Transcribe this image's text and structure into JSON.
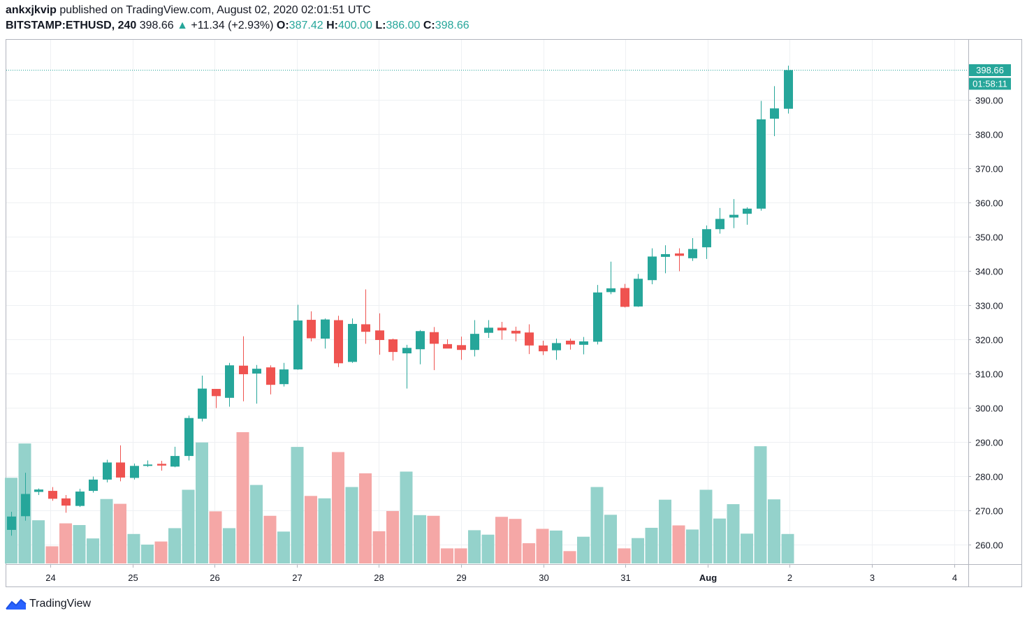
{
  "header": {
    "author": "ankxjkvip",
    "published_text": "published on TradingView.com, August 02, 2020 02:01:51 UTC",
    "symbol": "BITSTAMP:ETHUSD, 240",
    "last": "398.66",
    "change_arrow": "▲",
    "change": "+11.34 (+2.93%)",
    "o_label": "O:",
    "o": "387.42",
    "h_label": "H:",
    "h": "400.00",
    "l_label": "L:",
    "l": "386.00",
    "c_label": "C:",
    "c": "398.66"
  },
  "price_tag": {
    "price": "398.66",
    "countdown": "01:58:11"
  },
  "brand": {
    "name": "TradingView",
    "icon": "tradingview-logo-icon"
  },
  "colors": {
    "up": "#26a69a",
    "down": "#ef5350",
    "vol_up": "#94d2cb",
    "vol_down": "#f5a7a6",
    "grid": "#eef0f3"
  },
  "chart_data": {
    "type": "candlestick",
    "y_ticks": [
      260,
      270,
      280,
      290,
      300,
      310,
      320,
      330,
      340,
      350,
      360,
      370,
      380,
      390
    ],
    "ylim": [
      254.5,
      408.2
    ],
    "x_labels": [
      "24",
      "25",
      "26",
      "27",
      "28",
      "29",
      "30",
      "31",
      "Aug",
      "2",
      "3",
      "4"
    ],
    "candles": [
      {
        "o": 264.3,
        "h": 269.6,
        "l": 262.6,
        "c": 268.2,
        "v": 25
      },
      {
        "o": 268.3,
        "h": 281.0,
        "l": 267.0,
        "c": 274.8,
        "v": 35
      },
      {
        "o": 275.4,
        "h": 276.4,
        "l": 274.5,
        "c": 276.1,
        "v": 12.6
      },
      {
        "o": 275.7,
        "h": 276.8,
        "l": 272.8,
        "c": 273.4,
        "v": 5
      },
      {
        "o": 273.5,
        "h": 274.5,
        "l": 269.3,
        "c": 271.4,
        "v": 11.7
      },
      {
        "o": 271.3,
        "h": 276.3,
        "l": 271.0,
        "c": 275.5,
        "v": 11.2
      },
      {
        "o": 275.7,
        "h": 279.9,
        "l": 275.2,
        "c": 279.0,
        "v": 7.3
      },
      {
        "o": 279.0,
        "h": 284.8,
        "l": 278.2,
        "c": 284.0,
        "v": 18.8
      },
      {
        "o": 284.0,
        "h": 289.0,
        "l": 278.5,
        "c": 279.6,
        "v": 17.4
      },
      {
        "o": 279.5,
        "h": 283.7,
        "l": 279.0,
        "c": 283.0,
        "v": 8.6
      },
      {
        "o": 283.0,
        "h": 284.6,
        "l": 282.7,
        "c": 283.4,
        "v": 5.5
      },
      {
        "o": 283.6,
        "h": 284.5,
        "l": 281.6,
        "c": 283.1,
        "v": 6.4
      },
      {
        "o": 282.8,
        "h": 288.6,
        "l": 282.6,
        "c": 285.9,
        "v": 10.3
      },
      {
        "o": 285.9,
        "h": 297.7,
        "l": 284.6,
        "c": 297.0,
        "v": 21.5
      },
      {
        "o": 296.8,
        "h": 309.4,
        "l": 296.0,
        "c": 305.6,
        "v": 35.3
      },
      {
        "o": 305.5,
        "h": 305.5,
        "l": 299.9,
        "c": 303.4,
        "v": 15.2
      },
      {
        "o": 302.9,
        "h": 313.1,
        "l": 300.3,
        "c": 312.4,
        "v": 10.3
      },
      {
        "o": 312.3,
        "h": 320.9,
        "l": 301.9,
        "c": 309.8,
        "v": 38.3
      },
      {
        "o": 310.0,
        "h": 312.5,
        "l": 301.2,
        "c": 311.4,
        "v": 22.9
      },
      {
        "o": 311.8,
        "h": 312.4,
        "l": 303.9,
        "c": 306.7,
        "v": 13.9
      },
      {
        "o": 306.9,
        "h": 313.1,
        "l": 306.2,
        "c": 311.2,
        "v": 9.3
      },
      {
        "o": 311.2,
        "h": 330.1,
        "l": 311.1,
        "c": 325.5,
        "v": 34
      },
      {
        "o": 325.7,
        "h": 328.2,
        "l": 319.4,
        "c": 320.3,
        "v": 19.7
      },
      {
        "o": 320.2,
        "h": 326.1,
        "l": 317.3,
        "c": 325.8,
        "v": 19
      },
      {
        "o": 325.6,
        "h": 326.9,
        "l": 311.9,
        "c": 313.0,
        "v": 32.5
      },
      {
        "o": 313.4,
        "h": 326.1,
        "l": 313.1,
        "c": 324.5,
        "v": 22.3
      },
      {
        "o": 324.4,
        "h": 334.6,
        "l": 318.7,
        "c": 322.2,
        "v": 26.3
      },
      {
        "o": 322.6,
        "h": 327.6,
        "l": 315.5,
        "c": 319.8,
        "v": 9.4
      },
      {
        "o": 320.0,
        "h": 320.2,
        "l": 313.8,
        "c": 316.3,
        "v": 15.3
      },
      {
        "o": 315.9,
        "h": 318.4,
        "l": 305.6,
        "c": 317.5,
        "v": 26.8
      },
      {
        "o": 317.1,
        "h": 322.7,
        "l": 312.7,
        "c": 322.4,
        "v": 14.1
      },
      {
        "o": 322.1,
        "h": 323.6,
        "l": 311.0,
        "c": 318.7,
        "v": 13.9
      },
      {
        "o": 318.6,
        "h": 320.0,
        "l": 317.6,
        "c": 317.3,
        "v": 4.4
      },
      {
        "o": 318.3,
        "h": 320.8,
        "l": 314.0,
        "c": 316.9,
        "v": 4.4
      },
      {
        "o": 316.9,
        "h": 325.6,
        "l": 315.0,
        "c": 321.6,
        "v": 9.7
      },
      {
        "o": 321.9,
        "h": 325.6,
        "l": 320.4,
        "c": 323.4,
        "v": 8.4
      },
      {
        "o": 323.4,
        "h": 325.1,
        "l": 319.9,
        "c": 322.6,
        "v": 13.6
      },
      {
        "o": 322.5,
        "h": 323.7,
        "l": 319.4,
        "c": 321.7,
        "v": 13
      },
      {
        "o": 322.0,
        "h": 324.4,
        "l": 315.7,
        "c": 318.2,
        "v": 5.9
      },
      {
        "o": 318.2,
        "h": 319.6,
        "l": 315.4,
        "c": 316.5,
        "v": 10.1
      },
      {
        "o": 316.8,
        "h": 320.2,
        "l": 314.0,
        "c": 318.9,
        "v": 9.6
      },
      {
        "o": 319.6,
        "h": 320.2,
        "l": 317.0,
        "c": 318.5,
        "v": 3.6
      },
      {
        "o": 318.4,
        "h": 320.7,
        "l": 315.6,
        "c": 319.4,
        "v": 7.8
      },
      {
        "o": 319.3,
        "h": 335.9,
        "l": 318.5,
        "c": 333.7,
        "v": 22.3
      },
      {
        "o": 333.8,
        "h": 342.7,
        "l": 333.2,
        "c": 334.9,
        "v": 14.2
      },
      {
        "o": 335.0,
        "h": 336.2,
        "l": 329.3,
        "c": 329.5,
        "v": 4.4
      },
      {
        "o": 329.6,
        "h": 339.1,
        "l": 329.5,
        "c": 337.7,
        "v": 7.4
      },
      {
        "o": 337.3,
        "h": 346.6,
        "l": 336.1,
        "c": 344.2,
        "v": 10.4
      },
      {
        "o": 344.1,
        "h": 347.5,
        "l": 339.3,
        "c": 344.9,
        "v": 18.6
      },
      {
        "o": 345.1,
        "h": 346.6,
        "l": 339.9,
        "c": 344.4,
        "v": 11.1
      },
      {
        "o": 343.7,
        "h": 349.6,
        "l": 342.9,
        "c": 346.4,
        "v": 9.9
      },
      {
        "o": 346.9,
        "h": 353.3,
        "l": 343.5,
        "c": 352.2,
        "v": 21.5
      },
      {
        "o": 352.2,
        "h": 358.4,
        "l": 350.9,
        "c": 355.2,
        "v": 13.1
      },
      {
        "o": 355.6,
        "h": 361.0,
        "l": 352.5,
        "c": 356.4,
        "v": 17.3
      },
      {
        "o": 356.7,
        "h": 358.6,
        "l": 353.5,
        "c": 358.2,
        "v": 8.7
      },
      {
        "o": 358.2,
        "h": 389.7,
        "l": 357.6,
        "c": 384.3,
        "v": 34.2
      },
      {
        "o": 384.5,
        "h": 394.0,
        "l": 379.4,
        "c": 387.5,
        "v": 18.7
      },
      {
        "o": 387.4,
        "h": 400.0,
        "l": 386.0,
        "c": 398.7,
        "v": 8.6
      }
    ]
  }
}
